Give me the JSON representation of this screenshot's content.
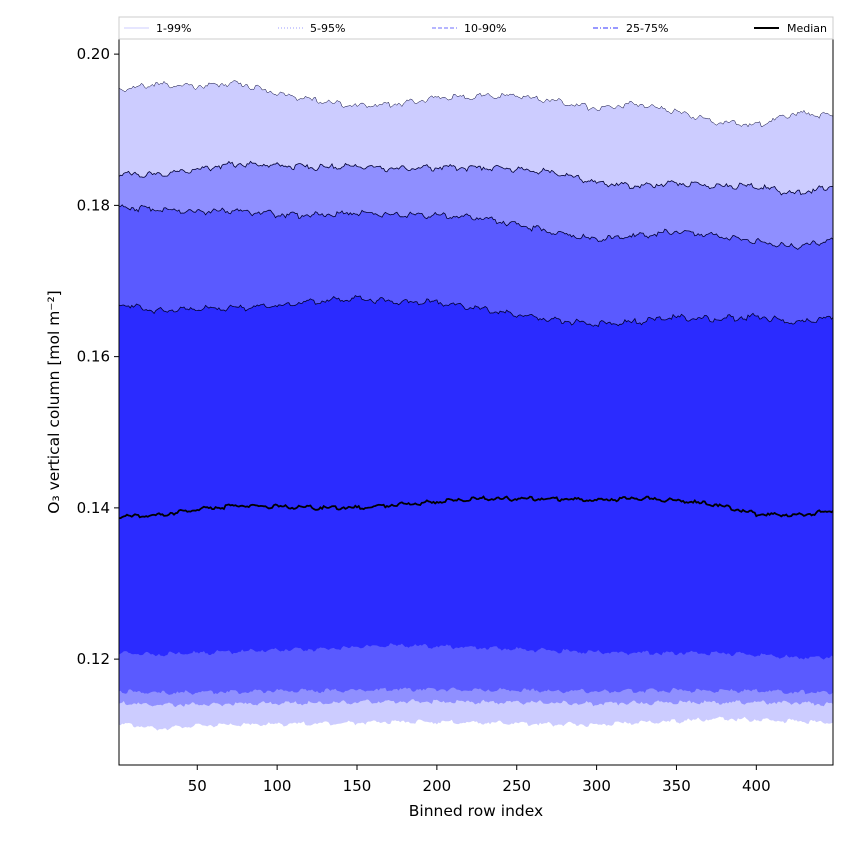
{
  "chart_data": {
    "type": "area",
    "title": "",
    "xlabel": "Binned row index",
    "ylabel": "O₃ vertical column [mol m⁻²]",
    "xlim": [
      1,
      448
    ],
    "ylim": [
      0.106,
      0.202
    ],
    "xticks": [
      50,
      100,
      150,
      200,
      250,
      300,
      350,
      400
    ],
    "yticks": [
      0.12,
      0.14,
      0.16,
      0.18,
      0.2
    ],
    "ytick_labels": [
      "0.12",
      "0.14",
      "0.16",
      "0.18",
      "0.20"
    ],
    "grid": false,
    "legend_placement": "top, above plot",
    "x": [
      1,
      25,
      50,
      75,
      100,
      125,
      150,
      175,
      200,
      225,
      250,
      275,
      300,
      325,
      350,
      375,
      400,
      425,
      448
    ],
    "bands": [
      {
        "name": "1-99%",
        "color": "#ccccff",
        "lower": [
          0.1115,
          0.1108,
          0.1112,
          0.1113,
          0.1114,
          0.1115,
          0.1116,
          0.1117,
          0.1117,
          0.1116,
          0.1115,
          0.1114,
          0.1113,
          0.1116,
          0.1118,
          0.1121,
          0.112,
          0.1118,
          0.1116
        ],
        "upper": [
          0.1953,
          0.196,
          0.1957,
          0.1962,
          0.1948,
          0.1938,
          0.1932,
          0.1934,
          0.1942,
          0.1944,
          0.1945,
          0.1938,
          0.1928,
          0.1934,
          0.1924,
          0.191,
          0.1906,
          0.1922,
          0.1918
        ]
      },
      {
        "name": "5-95%",
        "color": "#8f8fff",
        "lower": [
          0.1142,
          0.1139,
          0.114,
          0.1141,
          0.1142,
          0.1142,
          0.1143,
          0.1144,
          0.1144,
          0.1143,
          0.1143,
          0.1142,
          0.1141,
          0.1142,
          0.1143,
          0.1143,
          0.1143,
          0.1142,
          0.114
        ],
        "upper": [
          0.1842,
          0.184,
          0.1848,
          0.1855,
          0.1853,
          0.185,
          0.1852,
          0.1848,
          0.185,
          0.185,
          0.1848,
          0.1843,
          0.183,
          0.1825,
          0.183,
          0.1826,
          0.1825,
          0.1815,
          0.1825
        ]
      },
      {
        "name": "10-90%",
        "color": "#5a5aff",
        "lower": [
          0.1158,
          0.1155,
          0.1156,
          0.1157,
          0.1158,
          0.1158,
          0.1159,
          0.116,
          0.116,
          0.1159,
          0.1159,
          0.1158,
          0.1157,
          0.1158,
          0.1159,
          0.1158,
          0.1158,
          0.1156,
          0.1156
        ],
        "upper": [
          0.1797,
          0.1795,
          0.1792,
          0.1793,
          0.1788,
          0.1787,
          0.179,
          0.1787,
          0.1787,
          0.1784,
          0.1775,
          0.1763,
          0.1755,
          0.176,
          0.1765,
          0.176,
          0.1752,
          0.1745,
          0.1755
        ]
      },
      {
        "name": "25-75%",
        "color": "#2b2bff",
        "lower": [
          0.1208,
          0.1206,
          0.1208,
          0.121,
          0.1212,
          0.1213,
          0.1216,
          0.1218,
          0.1217,
          0.1215,
          0.1213,
          0.1211,
          0.1209,
          0.1208,
          0.1208,
          0.1208,
          0.1206,
          0.1202,
          0.1203
        ],
        "upper": [
          0.167,
          0.166,
          0.1663,
          0.1664,
          0.1668,
          0.1673,
          0.1677,
          0.1672,
          0.1672,
          0.1664,
          0.1655,
          0.1648,
          0.1643,
          0.1646,
          0.1652,
          0.165,
          0.1653,
          0.1645,
          0.1652
        ]
      }
    ],
    "median": {
      "name": "Median",
      "color": "#000000",
      "values": [
        0.1388,
        0.139,
        0.1398,
        0.1403,
        0.1402,
        0.14,
        0.14,
        0.1404,
        0.1408,
        0.1412,
        0.1412,
        0.1412,
        0.141,
        0.1413,
        0.141,
        0.1404,
        0.1392,
        0.139,
        0.1396
      ]
    },
    "legend": [
      {
        "label": "1-99%",
        "color": "#d8d8ff",
        "style": "solid"
      },
      {
        "label": "5-95%",
        "color": "#b0b0ff",
        "style": "dotted"
      },
      {
        "label": "10-90%",
        "color": "#8a8aff",
        "style": "dashed"
      },
      {
        "label": "25-75%",
        "color": "#5a5aff",
        "style": "dashdot"
      },
      {
        "label": "Median",
        "color": "#000000",
        "style": "solid-bold"
      }
    ]
  }
}
